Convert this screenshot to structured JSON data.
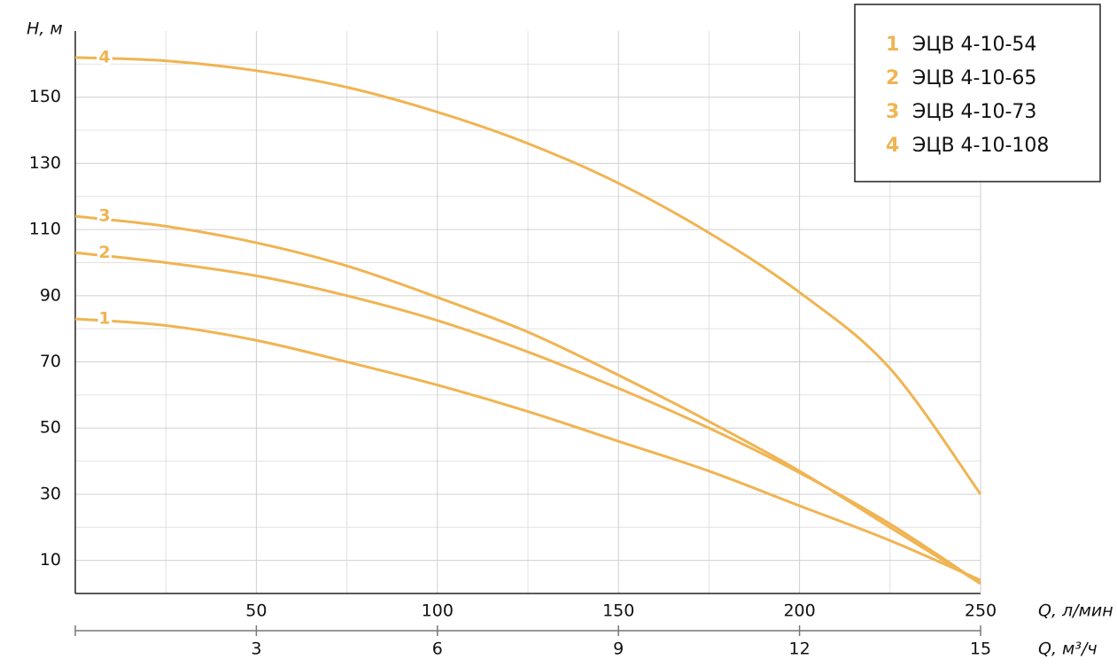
{
  "chart_data": {
    "type": "line",
    "ylabel": "H, м",
    "xlabel": "Q, л/мин",
    "x2label": "Q, м³/ч",
    "x": [
      0,
      25,
      50,
      75,
      100,
      125,
      150,
      175,
      200,
      225,
      250
    ],
    "xlim": [
      0,
      250
    ],
    "xticks": [
      50,
      100,
      150,
      200,
      250
    ],
    "xminor": [
      25,
      75,
      125,
      175,
      225
    ],
    "x2lim": [
      0,
      15
    ],
    "x2ticks": [
      3,
      6,
      9,
      12,
      15
    ],
    "ylim": [
      0,
      170
    ],
    "yticks": [
      10,
      30,
      50,
      70,
      90,
      110,
      130,
      150
    ],
    "yminor": [
      20,
      40,
      60,
      80,
      100,
      120,
      140,
      160
    ],
    "grid": true,
    "legend": "upper right",
    "series": [
      {
        "label": "1",
        "name": "ЭЦВ 4-10-54",
        "color": "#f0b452",
        "values": [
          83,
          81,
          76.5,
          70,
          63,
          55,
          46,
          37,
          26.5,
          16,
          4
        ]
      },
      {
        "label": "2",
        "name": "ЭЦВ 4-10-65",
        "color": "#f0b452",
        "values": [
          103,
          100,
          96,
          90,
          82.5,
          73,
          62,
          50,
          36.5,
          21,
          3
        ]
      },
      {
        "label": "3",
        "name": "ЭЦВ 4-10-73",
        "color": "#f0b452",
        "values": [
          114,
          111,
          106,
          99,
          89.5,
          79,
          66,
          52,
          37,
          20,
          3
        ]
      },
      {
        "label": "4",
        "name": "ЭЦВ 4-10-108",
        "color": "#f0b452",
        "values": [
          162,
          161,
          158,
          153,
          145.5,
          136,
          124,
          109,
          91,
          68,
          30
        ]
      }
    ]
  }
}
